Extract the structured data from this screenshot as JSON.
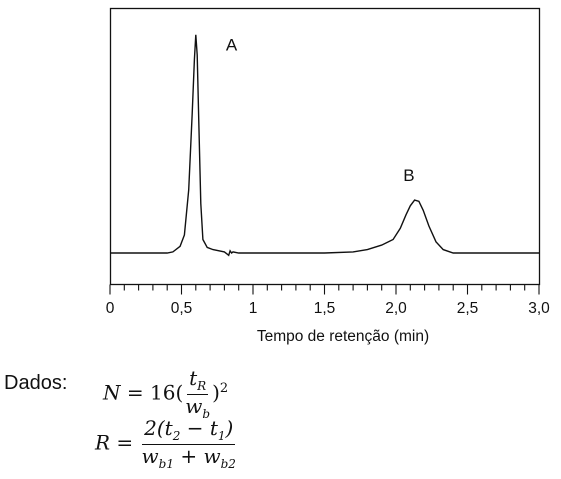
{
  "chart_data": {
    "type": "line",
    "title": "",
    "xlabel": "Tempo de retenção (min)",
    "ylabel": "",
    "xlim": [
      0,
      3.0
    ],
    "ylim": [
      0,
      1.0
    ],
    "x_ticks": [
      {
        "value": 0,
        "label": "0"
      },
      {
        "value": 0.5,
        "label": "0,5"
      },
      {
        "value": 1.0,
        "label": "1"
      },
      {
        "value": 1.5,
        "label": "1,5"
      },
      {
        "value": 2.0,
        "label": "2,0"
      },
      {
        "value": 2.5,
        "label": "2,5"
      },
      {
        "value": 3.0,
        "label": "3,0"
      }
    ],
    "minor_tick_step": 0.1,
    "grid": false,
    "series": [
      {
        "x": [
          0.0,
          0.2,
          0.4,
          0.44,
          0.49,
          0.52,
          0.55,
          0.575,
          0.59,
          0.6,
          0.61,
          0.62,
          0.635,
          0.65,
          0.68,
          0.72,
          0.8,
          0.83,
          0.84,
          0.85,
          0.86,
          0.9,
          1.2,
          1.5,
          1.7,
          1.8,
          1.9,
          1.98,
          2.03,
          2.07,
          2.1,
          2.13,
          2.16,
          2.19,
          2.23,
          2.28,
          2.33,
          2.4,
          2.6,
          3.0
        ],
        "y": [
          0.0,
          0.0,
          0.0,
          0.005,
          0.03,
          0.08,
          0.28,
          0.62,
          0.86,
          0.97,
          0.88,
          0.6,
          0.22,
          0.06,
          0.025,
          0.015,
          0.005,
          -0.01,
          0.01,
          0.0,
          0.005,
          0.0,
          0.0,
          0.0,
          0.005,
          0.015,
          0.035,
          0.06,
          0.11,
          0.17,
          0.21,
          0.235,
          0.23,
          0.19,
          0.12,
          0.05,
          0.015,
          0.0,
          0.0,
          0.0
        ]
      }
    ],
    "annotations": [
      {
        "text": "A",
        "x": 0.85,
        "y": 0.9
      },
      {
        "text": "B",
        "x": 2.09,
        "y": 0.32
      }
    ]
  },
  "dados_label": "Dados:",
  "equations": {
    "eq1": {
      "lhs": "N",
      "coef": "16",
      "num_var": "t",
      "num_sub": "R",
      "den_var": "w",
      "den_sub": "b",
      "exponent": "2"
    },
    "eq2": {
      "lhs": "R",
      "num": "2(t",
      "num_sub1": "2",
      "num_mid": " − t",
      "num_sub2": "1",
      "num_end": ")",
      "den1": "w",
      "den1_sub": "b1",
      "den_plus": " + w",
      "den2_sub": "b2"
    }
  }
}
